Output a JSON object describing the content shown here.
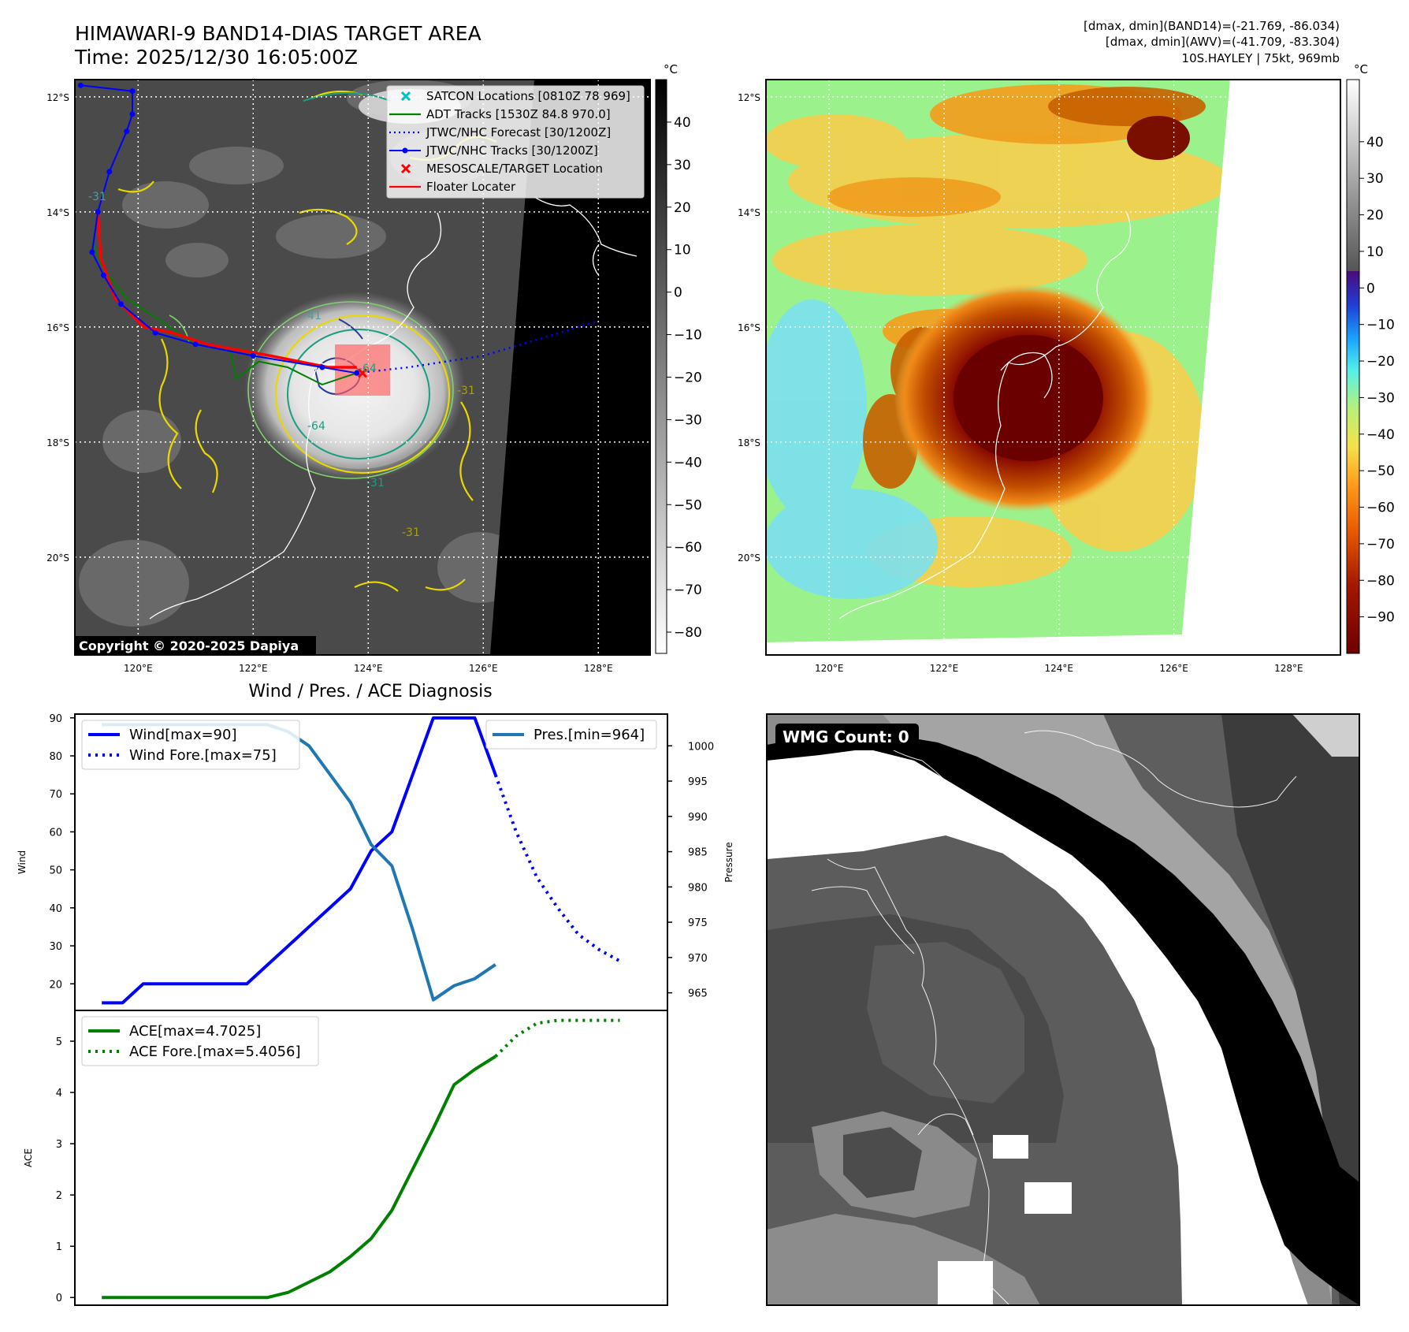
{
  "header": {
    "title": "HIMAWARI-9 BAND14-DIAS TARGET AREA",
    "time": "Time: 2025/12/30 16:05:00Z",
    "stats_band14": "[dmax, dmin](BAND14)=(-21.769, -86.034)",
    "stats_awv": "[dmax, dmin](AWV)=(-41.709, -83.304)",
    "storm_info": "10S.HAYLEY | 75kt, 969mb"
  },
  "map": {
    "lat_labels": [
      "12°S",
      "14°S",
      "16°S",
      "18°S",
      "20°S"
    ],
    "lon_labels": [
      "120°E",
      "122°E",
      "124°E",
      "126°E",
      "128°E"
    ],
    "copyright": "Copyright © 2020-2025 Dapiya",
    "contour_labels": [
      "-31",
      "-41",
      "-64",
      "-31",
      "-64",
      "-31",
      "-31"
    ],
    "legend": [
      {
        "label": "SATCON Locations [0810Z 78 969]",
        "color": "#00bfbf",
        "marker": "x"
      },
      {
        "label": "ADT Tracks [1530Z 84.8 970.0]",
        "color": "#008000",
        "marker": "line"
      },
      {
        "label": "JTWC/NHC Forecast [30/1200Z]",
        "color": "#0000ff",
        "marker": "dotted"
      },
      {
        "label": "JTWC/NHC Tracks [30/1200Z]",
        "color": "#0000ff",
        "marker": "line-dot"
      },
      {
        "label": "MESOSCALE/TARGET Location",
        "color": "#ff0000",
        "marker": "x"
      },
      {
        "label": "Floater Locater",
        "color": "#ff0000",
        "marker": "line"
      }
    ],
    "track_jtwc": [
      [
        119.0,
        11.8
      ],
      [
        119.9,
        11.9
      ],
      [
        119.9,
        12.3
      ],
      [
        119.8,
        12.6
      ],
      [
        119.5,
        13.3
      ],
      [
        119.3,
        14.0
      ],
      [
        119.2,
        14.7
      ],
      [
        119.4,
        15.1
      ],
      [
        119.7,
        15.6
      ],
      [
        120.3,
        16.1
      ],
      [
        121.0,
        16.3
      ],
      [
        122.0,
        16.5
      ],
      [
        123.2,
        16.7
      ],
      [
        123.8,
        16.8
      ]
    ],
    "track_adt": [
      [
        119.2,
        14.5
      ],
      [
        119.4,
        15.0
      ],
      [
        119.8,
        15.5
      ],
      [
        120.4,
        15.9
      ],
      [
        121.0,
        16.3
      ],
      [
        121.6,
        16.4
      ],
      [
        121.7,
        16.9
      ],
      [
        122.1,
        16.6
      ],
      [
        122.6,
        16.7
      ],
      [
        123.0,
        16.9
      ],
      [
        123.2,
        17.0
      ],
      [
        123.5,
        16.9
      ],
      [
        123.8,
        16.8
      ]
    ],
    "track_floater": [
      [
        119.3,
        14.0
      ],
      [
        119.35,
        14.8
      ],
      [
        119.6,
        15.5
      ],
      [
        120.1,
        16.0
      ],
      [
        120.6,
        16.1
      ],
      [
        121.2,
        16.3
      ],
      [
        122.3,
        16.5
      ],
      [
        123.3,
        16.7
      ],
      [
        123.8,
        16.7
      ]
    ],
    "forecast": [
      [
        123.8,
        16.8
      ],
      [
        124.7,
        16.7
      ],
      [
        126.0,
        16.5
      ],
      [
        127.0,
        16.2
      ],
      [
        128.0,
        15.9
      ]
    ],
    "target": [
      123.9,
      16.8
    ]
  },
  "colorbars": {
    "unit": "°C",
    "left_ticks": [
      "40",
      "30",
      "20",
      "10",
      "0",
      "−10",
      "−20",
      "−30",
      "−40",
      "−50",
      "−60",
      "−70",
      "−80"
    ],
    "right_ticks": [
      "40",
      "30",
      "20",
      "10",
      "0",
      "−10",
      "−20",
      "−30",
      "−40",
      "−50",
      "−60",
      "−70",
      "−80",
      "−90"
    ]
  },
  "wmg": {
    "label": "WMG Count: 0"
  },
  "chart_data": [
    {
      "type": "line",
      "title": "Wind / Pres. / ACE Diagnosis",
      "ylabel": "Wind",
      "y2label": "Pressure",
      "ylim": [
        13,
        91
      ],
      "y2lim": [
        962.5,
        1004.5
      ],
      "yticks": [
        20,
        30,
        40,
        50,
        60,
        70,
        80,
        90
      ],
      "y2ticks": [
        965,
        970,
        975,
        980,
        985,
        990,
        995,
        1000
      ],
      "legend": [
        "Wind[max=90]",
        "Wind Fore.[max=75]",
        "Pres.[min=964]"
      ],
      "series": [
        {
          "name": "Wind[max=90]",
          "axis": "left",
          "color": "#0000ff",
          "style": "solid",
          "x": [
            0,
            1,
            2,
            3,
            4,
            5,
            6,
            7,
            8,
            9,
            10,
            11,
            12,
            13,
            14,
            15,
            16,
            17,
            18,
            19
          ],
          "values": [
            15,
            15,
            20,
            20,
            20,
            20,
            20,
            20,
            25,
            30,
            35,
            40,
            45,
            55,
            60,
            75,
            90,
            90,
            90,
            75
          ]
        },
        {
          "name": "Wind Fore.[max=75]",
          "axis": "left",
          "color": "#0000ff",
          "style": "dotted",
          "x": [
            19,
            20,
            21,
            22,
            23,
            24,
            25
          ],
          "values": [
            75,
            60,
            48,
            40,
            33,
            29,
            26
          ]
        },
        {
          "name": "Pres.[min=964]",
          "axis": "right",
          "color": "#1f77b4",
          "style": "solid",
          "x": [
            0,
            1,
            2,
            3,
            4,
            5,
            6,
            7,
            8,
            9,
            10,
            11,
            12,
            13,
            14,
            15,
            16,
            17,
            18,
            19
          ],
          "values": [
            1003,
            1003,
            1003,
            1003,
            1003,
            1003,
            1003,
            1003,
            1003,
            1002,
            1000,
            996,
            992,
            986,
            983,
            974,
            964,
            966,
            967,
            969
          ]
        }
      ]
    },
    {
      "type": "line",
      "ylabel": "ACE",
      "ylim": [
        -0.15,
        5.6
      ],
      "yticks": [
        0,
        1,
        2,
        3,
        4,
        5
      ],
      "legend": [
        "ACE[max=4.7025]",
        "ACE Fore.[max=5.4056]"
      ],
      "series": [
        {
          "name": "ACE[max=4.7025]",
          "color": "#008000",
          "style": "solid",
          "x": [
            0,
            1,
            2,
            3,
            4,
            5,
            6,
            7,
            8,
            9,
            10,
            11,
            12,
            13,
            14,
            15,
            16,
            17,
            18,
            19
          ],
          "values": [
            0,
            0,
            0,
            0,
            0,
            0,
            0,
            0,
            0,
            0.1,
            0.3,
            0.5,
            0.8,
            1.15,
            1.7,
            2.5,
            3.3,
            4.15,
            4.45,
            4.7025
          ]
        },
        {
          "name": "ACE Fore.[max=5.4056]",
          "color": "#008000",
          "style": "dotted",
          "x": [
            19,
            20,
            21,
            22,
            23,
            24,
            25
          ],
          "values": [
            4.7025,
            5.1,
            5.35,
            5.4056,
            5.4056,
            5.4056,
            5.4056
          ]
        }
      ]
    }
  ]
}
